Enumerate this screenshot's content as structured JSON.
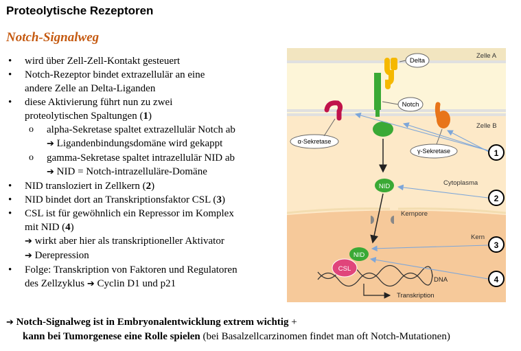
{
  "page": {
    "title": "Proteolytische Rezeptoren",
    "subtitle": "Notch-Signalweg"
  },
  "bullets": {
    "b1": "wird über Zell-Zell-Kontakt gesteuert",
    "b2_line1": "Notch-Rezeptor bindet extrazellulär an eine",
    "b2_line2": "andere Zelle an Delta-Liganden",
    "b3_line1": "diese Aktivierung führt nun zu zwei",
    "b3_line2": "proteolytischen Spaltungen (",
    "b3_num": "1",
    "b3_close": ")",
    "b3_sub1_line1": "alpha-Sekretase spaltet extrazellulär Notch ab",
    "b3_sub1_line2": "Ligandenbindungsdomäne wird gekappt",
    "b3_sub2_line1": "gamma-Sekretase spaltet intrazellulär NID ab",
    "b3_sub2_line2": "NID = Notch-intrazelluläre-Domäne",
    "b4_text": "NID transloziert in Zellkern (",
    "b4_num": "2",
    "b4_close": ")",
    "b5_text": "NID bindet dort an Transkriptionsfaktor CSL (",
    "b5_num": "3",
    "b5_close": ")",
    "b6_line1": "CSL ist für gewöhnlich ein Repressor im Komplex",
    "b6_line2_text": "mit NID (",
    "b6_num": "4",
    "b6_close": ")",
    "b6_line3": "wirkt aber hier als transkriptioneller Aktivator",
    "b6_line4": "Derepression",
    "b7_line1": "Folge: Transkription von Faktoren und Regulatoren",
    "b7_line2_text": "des Zellzyklus",
    "b7_line2_end": "Cyclin D1 und p21"
  },
  "note": {
    "bold1": "Notch-Signalweg ist in Embryonalentwicklung extrem wichtig",
    "plus": " +",
    "bold2": "kann bei Tumorgenese eine Rolle spielen",
    "rest": " (bei Basalzellcarzinomen findet man oft Notch-Mutationen)"
  },
  "figure": {
    "zelle_a": "Zelle A",
    "zelle_b": "Zelle B",
    "delta": "Delta",
    "notch": "Notch",
    "alpha": "α-Sekretase",
    "gamma": "γ-Sekretase",
    "nid": "NID",
    "nid2": "NID",
    "csl": "CSL",
    "cytoplasma": "Cytoplasma",
    "kernpore": "Kernpore",
    "kern": "Kern",
    "dna": "DNA",
    "transkription": "Transkription",
    "n1": "1",
    "n2": "2",
    "n3": "3",
    "n4": "4"
  },
  "colors": {
    "subtitle": "#c55a11",
    "extracellular": "#fdf5d8",
    "cytoplasm": "#fde9c8",
    "nucleus": "#f6c99a",
    "notch_green": "#3aa935",
    "delta_yellow": "#f5b800",
    "gamma_orange": "#e8751a",
    "alpha_red": "#c0134a",
    "csl_pink": "#e0457b",
    "pointer_blue": "#7da6d9"
  },
  "icons": {
    "arrow": "right-arrow-icon",
    "bullet": "bullet-dot-icon"
  }
}
